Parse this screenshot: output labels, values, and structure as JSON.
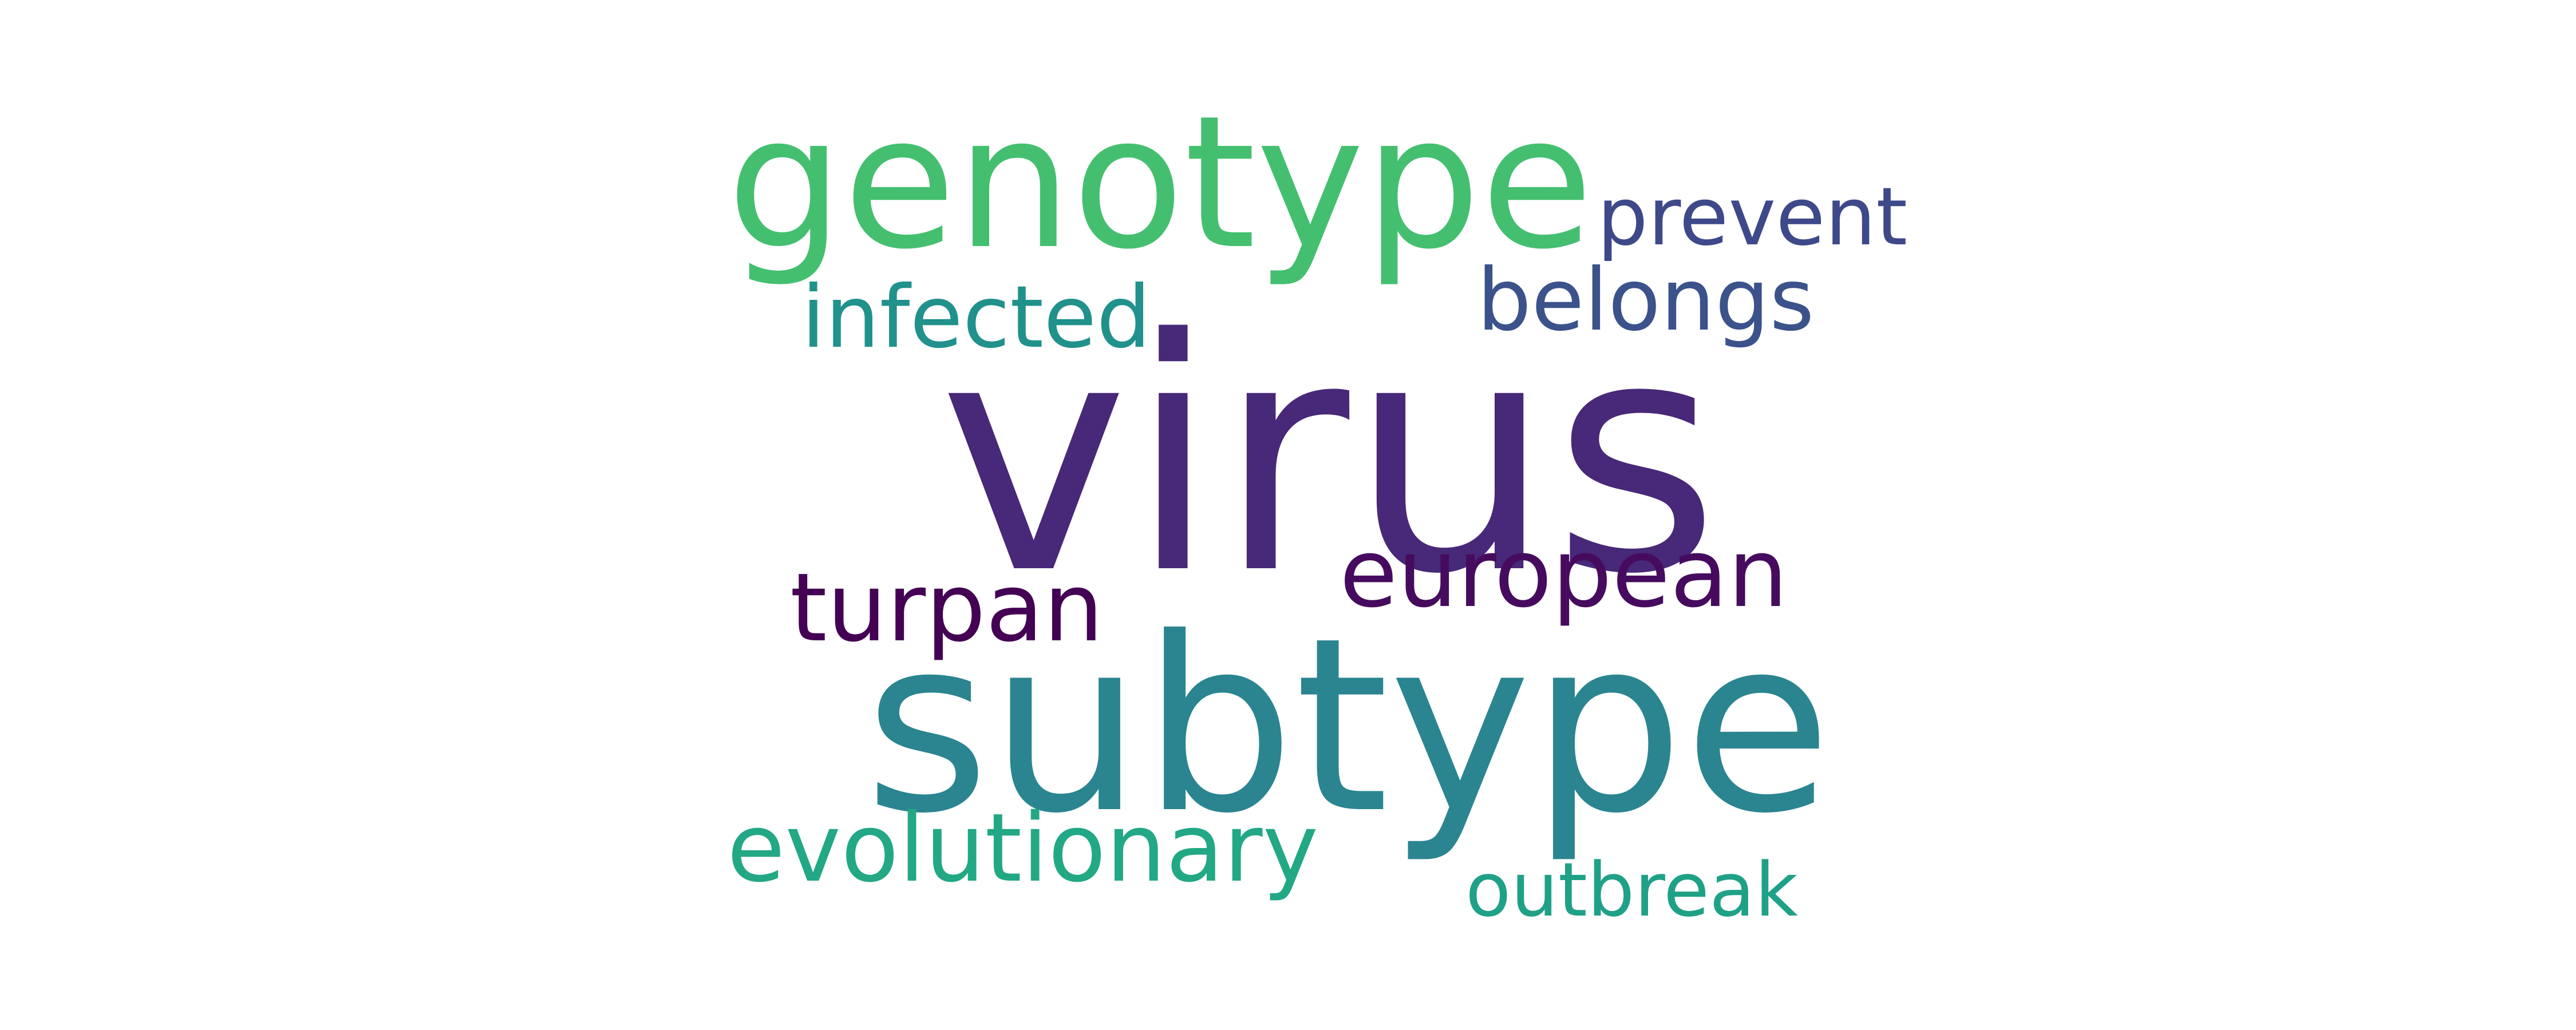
{
  "word_cloud": {
    "words": [
      {
        "id": "virus",
        "text": "virus",
        "color": "#482878"
      },
      {
        "id": "subtype",
        "text": "subtype",
        "color": "#2a8590"
      },
      {
        "id": "genotype",
        "text": "genotype",
        "color": "#44bf70"
      },
      {
        "id": "european",
        "text": "european",
        "color": "#460b5e"
      },
      {
        "id": "turpan",
        "text": "turpan",
        "color": "#440154"
      },
      {
        "id": "infected",
        "text": "infected",
        "color": "#21918c"
      },
      {
        "id": "belongs",
        "text": "belongs",
        "color": "#3b528b"
      },
      {
        "id": "prevent",
        "text": "prevent",
        "color": "#3e4989"
      },
      {
        "id": "evolutionary",
        "text": "evolutionary",
        "color": "#22a884"
      },
      {
        "id": "outbreak",
        "text": "outbreak",
        "color": "#1fa187"
      }
    ]
  }
}
